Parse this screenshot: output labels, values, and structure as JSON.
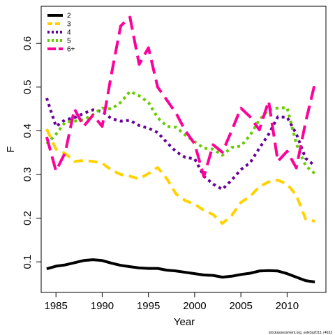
{
  "chart_data": {
    "type": "line",
    "xlabel": "Year",
    "ylabel": "F",
    "xlim": [
      1983.4,
      2014.2
    ],
    "ylim": [
      0.03,
      0.685
    ],
    "x_ticks": [
      1985,
      1990,
      1995,
      2000,
      2005,
      2010
    ],
    "x_tick_labels": [
      "1985",
      "1990",
      "1995",
      "2000",
      "2005",
      "2010"
    ],
    "y_ticks": [
      0.1,
      0.2,
      0.3,
      0.4,
      0.5,
      0.6
    ],
    "y_tick_labels": [
      "0.1",
      "0.2",
      "0.3",
      "0.4",
      "0.5",
      "0.6"
    ],
    "grid": false,
    "legend_position": "top-left",
    "x": [
      1984,
      1985,
      1986,
      1987,
      1988,
      1989,
      1990,
      1991,
      1992,
      1993,
      1994,
      1995,
      1996,
      1997,
      1998,
      1999,
      2000,
      2001,
      2002,
      2003,
      2004,
      2005,
      2006,
      2007,
      2008,
      2009,
      2010,
      2011,
      2012,
      2013
    ],
    "series": [
      {
        "name": "2",
        "color": "#000000",
        "dash": "solid",
        "values": [
          0.084,
          0.09,
          0.093,
          0.098,
          0.103,
          0.105,
          0.103,
          0.097,
          0.092,
          0.089,
          0.086,
          0.085,
          0.085,
          0.081,
          0.079,
          0.076,
          0.073,
          0.07,
          0.069,
          0.065,
          0.067,
          0.071,
          0.074,
          0.079,
          0.08,
          0.079,
          0.073,
          0.065,
          0.057,
          0.054
        ]
      },
      {
        "name": "3",
        "color": "#FFD200",
        "dash": "dashed",
        "values": [
          0.404,
          0.358,
          0.348,
          0.33,
          0.332,
          0.33,
          0.326,
          0.31,
          0.3,
          0.296,
          0.29,
          0.302,
          0.316,
          0.29,
          0.255,
          0.24,
          0.232,
          0.218,
          0.208,
          0.188,
          0.206,
          0.236,
          0.25,
          0.272,
          0.283,
          0.287,
          0.278,
          0.252,
          0.198,
          0.193
        ]
      },
      {
        "name": "4",
        "color": "#660099",
        "dash": "dotted",
        "values": [
          0.475,
          0.41,
          0.425,
          0.43,
          0.44,
          0.448,
          0.444,
          0.428,
          0.422,
          0.424,
          0.412,
          0.406,
          0.396,
          0.373,
          0.352,
          0.339,
          0.336,
          0.296,
          0.278,
          0.266,
          0.287,
          0.311,
          0.327,
          0.36,
          0.392,
          0.432,
          0.431,
          0.393,
          0.337,
          0.32
        ]
      },
      {
        "name": "5",
        "color": "#66CC00",
        "dash": "dotted",
        "values": [
          0.37,
          0.392,
          0.42,
          0.422,
          0.425,
          0.437,
          0.452,
          0.45,
          0.465,
          0.49,
          0.48,
          0.465,
          0.43,
          0.41,
          0.408,
          0.39,
          0.375,
          0.36,
          0.358,
          0.344,
          0.362,
          0.365,
          0.39,
          0.425,
          0.448,
          0.452,
          0.453,
          0.37,
          0.32,
          0.302
        ]
      },
      {
        "name": "6+",
        "color": "#FF0099",
        "dash": "longdash",
        "values": [
          0.386,
          0.308,
          0.35,
          0.45,
          0.41,
          0.436,
          0.41,
          0.53,
          0.64,
          0.66,
          0.552,
          0.59,
          0.5,
          0.47,
          0.44,
          0.4,
          0.37,
          0.295,
          0.368,
          0.351,
          0.4,
          0.452,
          0.432,
          0.402,
          0.468,
          0.33,
          0.353,
          0.315,
          0.42,
          0.508
        ]
      }
    ]
  },
  "credit": "stockassessment.org, sole3a2013, r4633"
}
